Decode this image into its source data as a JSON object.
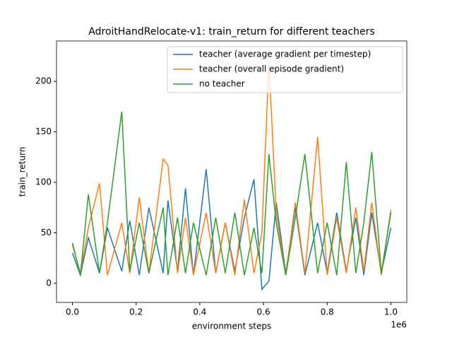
{
  "chart_data": {
    "type": "line",
    "title": "AdroitHandRelocate-v1: train_return for different teachers",
    "x_label": "environment steps",
    "y_label": "train_return",
    "x_offset_text": "1e6",
    "x": [
      0,
      25000,
      50000,
      85000,
      110000,
      155000,
      180000,
      210000,
      240000,
      285000,
      300000,
      330000,
      355000,
      380000,
      420000,
      450000,
      480000,
      510000,
      540000,
      570000,
      595000,
      617000,
      640000,
      670000,
      700000,
      730000,
      770000,
      800000,
      830000,
      860000,
      890000,
      915000,
      940000,
      970000,
      1000000
    ],
    "series": [
      {
        "name": "teacher (average gradient per timestep)",
        "color": "#1f77b4",
        "values": [
          30,
          8,
          45,
          10,
          55,
          12,
          62,
          8,
          75,
          10,
          82,
          12,
          94,
          8,
          113,
          10,
          60,
          12,
          65,
          103,
          -6,
          2,
          80,
          10,
          75,
          8,
          60,
          10,
          70,
          12,
          65,
          8,
          70,
          10,
          55
        ]
      },
      {
        "name": "teacher (overall episode gradient)",
        "color": "#ff7f0e",
        "values": [
          38,
          10,
          55,
          99,
          8,
          60,
          10,
          85,
          10,
          123,
          117,
          10,
          65,
          8,
          70,
          10,
          60,
          8,
          83,
          10,
          50,
          220,
          70,
          8,
          80,
          10,
          145,
          8,
          65,
          10,
          75,
          12,
          80,
          8,
          73
        ]
      },
      {
        "name": "no teacher",
        "color": "#2ca02c",
        "values": [
          40,
          8,
          88,
          10,
          60,
          170,
          12,
          60,
          10,
          75,
          8,
          65,
          10,
          60,
          8,
          65,
          10,
          70,
          8,
          55,
          10,
          128,
          60,
          8,
          65,
          128,
          10,
          60,
          8,
          120,
          10,
          60,
          130,
          10,
          70
        ]
      }
    ],
    "xlim": [
      -50000,
      1050000
    ],
    "ylim": [
      -19,
      240
    ],
    "xticks": [
      {
        "value": 0,
        "label": "0.0"
      },
      {
        "value": 200000,
        "label": "0.2"
      },
      {
        "value": 400000,
        "label": "0.4"
      },
      {
        "value": 600000,
        "label": "0.6"
      },
      {
        "value": 800000,
        "label": "0.8"
      },
      {
        "value": 1000000,
        "label": "1.0"
      }
    ],
    "yticks": [
      0,
      50,
      100,
      150,
      200
    ],
    "legend": "upper right"
  }
}
